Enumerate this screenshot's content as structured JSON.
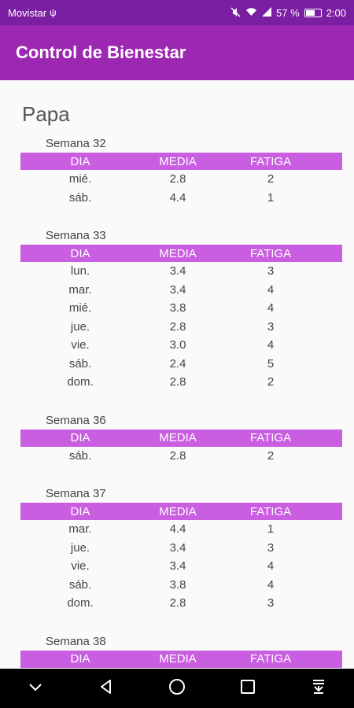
{
  "status": {
    "carrier": "Movistar",
    "battery": "57 %",
    "time": "2:00"
  },
  "app": {
    "title": "Control de Bienestar"
  },
  "person": "Papa",
  "headers": {
    "day": "DIA",
    "mean": "MEDIA",
    "fatigue": "FATIGA"
  },
  "weeks": [
    {
      "title": "Semana 32",
      "rows": [
        {
          "day": "mié.",
          "mean": "2.8",
          "fatigue": "2"
        },
        {
          "day": "sáb.",
          "mean": "4.4",
          "fatigue": "1"
        }
      ]
    },
    {
      "title": "Semana 33",
      "rows": [
        {
          "day": "lun.",
          "mean": "3.4",
          "fatigue": "3"
        },
        {
          "day": "mar.",
          "mean": "3.4",
          "fatigue": "4"
        },
        {
          "day": "mié.",
          "mean": "3.8",
          "fatigue": "4"
        },
        {
          "day": "jue.",
          "mean": "2.8",
          "fatigue": "3"
        },
        {
          "day": "vie.",
          "mean": "3.0",
          "fatigue": "4"
        },
        {
          "day": "sáb.",
          "mean": "2.4",
          "fatigue": "5"
        },
        {
          "day": "dom.",
          "mean": "2.8",
          "fatigue": "2"
        }
      ]
    },
    {
      "title": "Semana 36",
      "rows": [
        {
          "day": "sáb.",
          "mean": "2.8",
          "fatigue": "2"
        }
      ]
    },
    {
      "title": "Semana 37",
      "rows": [
        {
          "day": "mar.",
          "mean": "4.4",
          "fatigue": "1"
        },
        {
          "day": "jue.",
          "mean": "3.4",
          "fatigue": "3"
        },
        {
          "day": "vie.",
          "mean": "3.4",
          "fatigue": "4"
        },
        {
          "day": "sáb.",
          "mean": "3.8",
          "fatigue": "4"
        },
        {
          "day": "dom.",
          "mean": "2.8",
          "fatigue": "3"
        }
      ]
    },
    {
      "title": "Semana 38",
      "rows": []
    }
  ],
  "icons": {
    "status": [
      "usb-icon",
      "mute-icon",
      "wifi-icon",
      "signal-icon",
      "battery-icon"
    ],
    "nav": [
      "chevron-down-icon",
      "back-icon",
      "home-icon",
      "recents-icon",
      "notification-pull-icon"
    ]
  },
  "colors": {
    "status_bar": "#7b1fa2",
    "app_bar": "#9c27b0",
    "table_header": "#c95ee0"
  }
}
